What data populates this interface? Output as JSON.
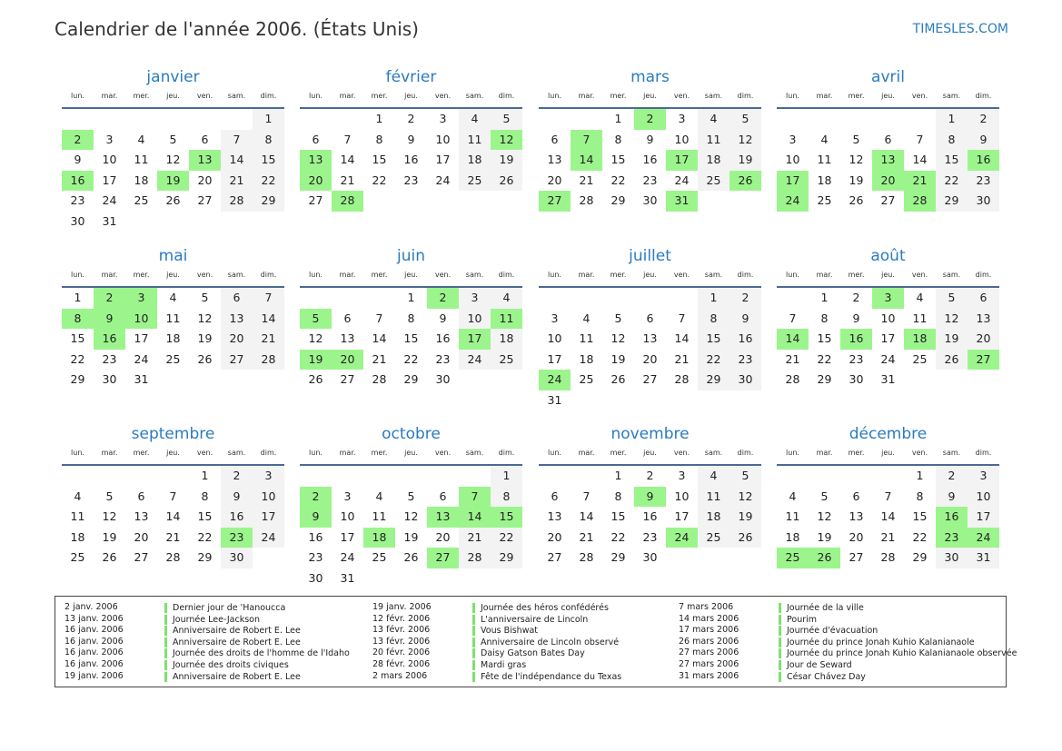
{
  "header": {
    "title": "Calendrier de l'année 2006. (États Unis)",
    "brand": "TIMESLES.COM"
  },
  "weekdays": [
    "lun.",
    "mar.",
    "mer.",
    "jeu.",
    "ven.",
    "sam.",
    "dim."
  ],
  "colors": {
    "holiday": "#9cf58c",
    "weekend": "#f3f3f3",
    "accent": "#2a7bc0"
  },
  "months": [
    {
      "name": "janvier",
      "start": 6,
      "days": 31,
      "holidays": [
        2,
        13,
        16,
        19
      ]
    },
    {
      "name": "février",
      "start": 2,
      "days": 28,
      "holidays": [
        12,
        13,
        20,
        28
      ]
    },
    {
      "name": "mars",
      "start": 2,
      "days": 31,
      "holidays": [
        2,
        7,
        14,
        17,
        26,
        27,
        31
      ]
    },
    {
      "name": "avril",
      "start": 5,
      "days": 30,
      "holidays": [
        13,
        16,
        17,
        20,
        21,
        24,
        28
      ]
    },
    {
      "name": "mai",
      "start": 0,
      "days": 31,
      "holidays": [
        2,
        3,
        8,
        9,
        10,
        16
      ]
    },
    {
      "name": "juin",
      "start": 3,
      "days": 30,
      "holidays": [
        2,
        5,
        11,
        17,
        19,
        20
      ]
    },
    {
      "name": "juillet",
      "start": 5,
      "days": 31,
      "holidays": [
        24
      ]
    },
    {
      "name": "août",
      "start": 1,
      "days": 31,
      "holidays": [
        3,
        14,
        16,
        18,
        27
      ]
    },
    {
      "name": "septembre",
      "start": 4,
      "days": 30,
      "holidays": [
        23
      ]
    },
    {
      "name": "octobre",
      "start": 6,
      "days": 31,
      "holidays": [
        2,
        7,
        9,
        13,
        14,
        15,
        18,
        27
      ]
    },
    {
      "name": "novembre",
      "start": 2,
      "days": 30,
      "holidays": [
        9,
        24
      ]
    },
    {
      "name": "décembre",
      "start": 4,
      "days": 31,
      "holidays": [
        16,
        23,
        24,
        25,
        26
      ]
    }
  ],
  "holiday_list": [
    {
      "date": "2 janv. 2006",
      "name": "Dernier jour de 'Hanoucca"
    },
    {
      "date": "13 janv. 2006",
      "name": "Journée Lee-Jackson"
    },
    {
      "date": "16 janv. 2006",
      "name": "Anniversaire de Robert E. Lee"
    },
    {
      "date": "16 janv. 2006",
      "name": "Anniversaire de Robert E. Lee"
    },
    {
      "date": "16 janv. 2006",
      "name": "Journée des droits de l'homme de l'Idaho"
    },
    {
      "date": "16 janv. 2006",
      "name": "Journée des droits civiques"
    },
    {
      "date": "19 janv. 2006",
      "name": "Anniversaire de Robert E. Lee"
    },
    {
      "date": "19 janv. 2006",
      "name": "Journée des héros confédérés"
    },
    {
      "date": "12 févr. 2006",
      "name": "L'anniversaire de Lincoln"
    },
    {
      "date": "13 févr. 2006",
      "name": "Vous Bishwat"
    },
    {
      "date": "13 févr. 2006",
      "name": "Anniversaire de Lincoln observé"
    },
    {
      "date": "20 févr. 2006",
      "name": "Daisy Gatson Bates Day"
    },
    {
      "date": "28 févr. 2006",
      "name": "Mardi gras"
    },
    {
      "date": "2 mars 2006",
      "name": "Fête de l'indépendance du Texas"
    },
    {
      "date": "7 mars 2006",
      "name": "Journée de la ville"
    },
    {
      "date": "14 mars 2006",
      "name": "Pourim"
    },
    {
      "date": "17 mars 2006",
      "name": "Journée d'évacuation"
    },
    {
      "date": "26 mars 2006",
      "name": "Journée du prince Jonah Kuhio Kalanianaole"
    },
    {
      "date": "27 mars 2006",
      "name": "Journée du prince Jonah Kuhio Kalanianaole observée"
    },
    {
      "date": "27 mars 2006",
      "name": "Jour de Seward"
    },
    {
      "date": "31 mars 2006",
      "name": "César Chávez Day"
    }
  ]
}
